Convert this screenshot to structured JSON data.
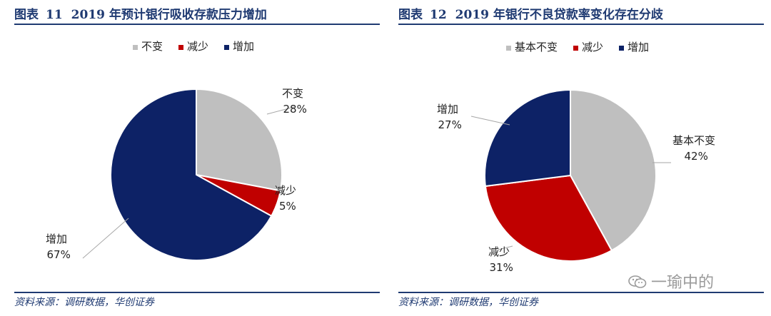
{
  "chart_data": [
    {
      "type": "pie",
      "figure_label": "图表",
      "figure_number": "11",
      "title": "2019 年预计银行吸收存款压力增加",
      "legend": [
        "不变",
        "减少",
        "增加"
      ],
      "slices": [
        {
          "label": "不变",
          "value": 28,
          "display": "28%",
          "color": "#bfbfbf"
        },
        {
          "label": "减少",
          "value": 5,
          "display": "5%",
          "color": "#c00000"
        },
        {
          "label": "增加",
          "value": 67,
          "display": "67%",
          "color": "#0d2266"
        }
      ],
      "source": "资料来源：调研数据，华创证券"
    },
    {
      "type": "pie",
      "figure_label": "图表",
      "figure_number": "12",
      "title": "2019 年银行不良贷款率变化存在分歧",
      "legend": [
        "基本不变",
        "减少",
        "增加"
      ],
      "slices": [
        {
          "label": "基本不变",
          "value": 42,
          "display": "42%",
          "color": "#bfbfbf"
        },
        {
          "label": "减少",
          "value": 31,
          "display": "31%",
          "color": "#c00000"
        },
        {
          "label": "增加",
          "value": 27,
          "display": "27%",
          "color": "#0d2266"
        }
      ],
      "source": "资料来源：调研数据，华创证券"
    }
  ],
  "watermark": {
    "text": "一瑜中的",
    "icon": "wechat-icon"
  }
}
